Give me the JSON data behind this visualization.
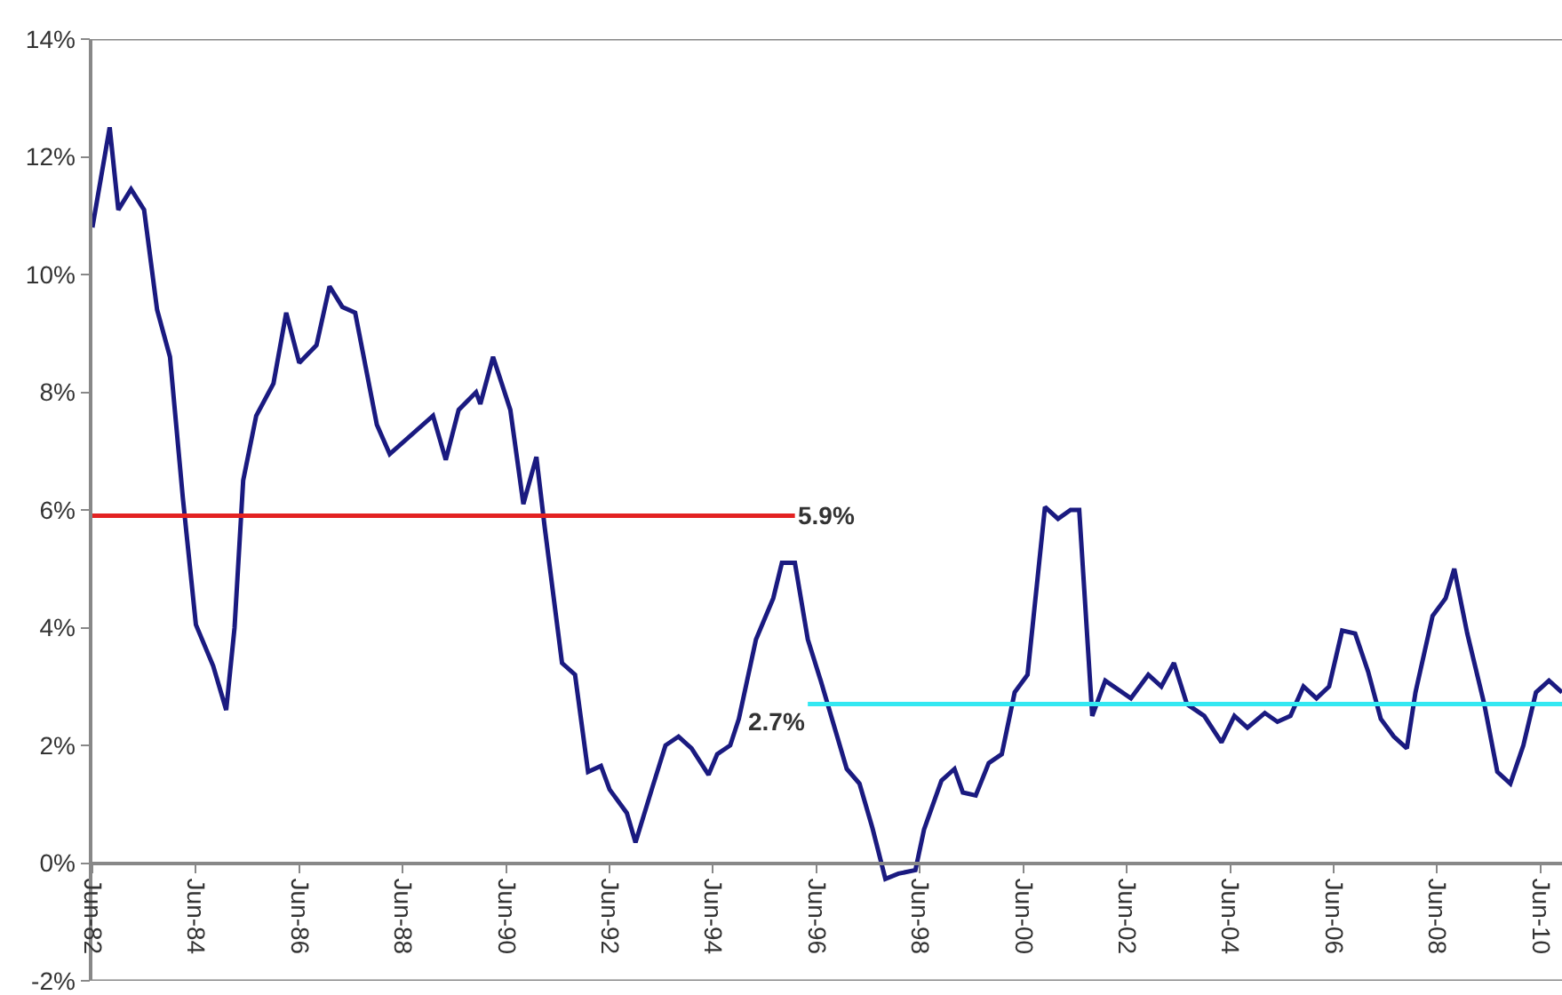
{
  "chart_data": {
    "type": "line",
    "ylim": [
      -2,
      14
    ],
    "yticks": [
      {
        "value": -2,
        "label": "-2%"
      },
      {
        "value": 0,
        "label": "0%"
      },
      {
        "value": 2,
        "label": "2%"
      },
      {
        "value": 4,
        "label": "4%"
      },
      {
        "value": 6,
        "label": "6%"
      },
      {
        "value": 8,
        "label": "8%"
      },
      {
        "value": 10,
        "label": "10%"
      },
      {
        "value": 12,
        "label": "12%"
      },
      {
        "value": 14,
        "label": "14%"
      }
    ],
    "xlim": [
      "1982-06",
      "2010-11"
    ],
    "xticks": [
      {
        "value": "1982-06",
        "label": "Jun-82"
      },
      {
        "value": "1984-06",
        "label": "Jun-84"
      },
      {
        "value": "1986-06",
        "label": "Jun-86"
      },
      {
        "value": "1988-06",
        "label": "Jun-88"
      },
      {
        "value": "1990-06",
        "label": "Jun-90"
      },
      {
        "value": "1992-06",
        "label": "Jun-92"
      },
      {
        "value": "1994-06",
        "label": "Jun-94"
      },
      {
        "value": "1996-06",
        "label": "Jun-96"
      },
      {
        "value": "1998-06",
        "label": "Jun-98"
      },
      {
        "value": "2000-06",
        "label": "Jun-00"
      },
      {
        "value": "2002-06",
        "label": "Jun-02"
      },
      {
        "value": "2004-06",
        "label": "Jun-04"
      },
      {
        "value": "2006-06",
        "label": "Jun-06"
      },
      {
        "value": "2008-06",
        "label": "Jun-08"
      },
      {
        "value": "2010-06",
        "label": "Jun-10"
      }
    ],
    "marker": "none",
    "line_style": "solid",
    "series": [
      {
        "color": "#1a1a80",
        "x": [
          "1982-06",
          "1982-10",
          "1982-12",
          "1983-03",
          "1983-06",
          "1983-09",
          "1983-12",
          "1984-03",
          "1984-06",
          "1984-10",
          "1985-01",
          "1985-03",
          "1985-05",
          "1985-08",
          "1985-12",
          "1986-03",
          "1986-06",
          "1986-10",
          "1987-01",
          "1987-04",
          "1987-07",
          "1987-12",
          "1988-03",
          "1989-01",
          "1989-04",
          "1989-07",
          "1989-11",
          "1989-12",
          "1990-03",
          "1990-07",
          "1990-10",
          "1991-01",
          "1991-03",
          "1991-07",
          "1991-10",
          "1992-01",
          "1992-04",
          "1992-06",
          "1992-10",
          "1992-12",
          "1993-04",
          "1993-07",
          "1993-10",
          "1994-01",
          "1994-05",
          "1994-07",
          "1994-10",
          "1994-12",
          "1995-04",
          "1995-08",
          "1995-10",
          "1996-01",
          "1996-04",
          "1996-07",
          "1997-01",
          "1997-04",
          "1997-07",
          "1997-10",
          "1998-01",
          "1998-05",
          "1998-07",
          "1998-11",
          "1999-02",
          "1999-04",
          "1999-07",
          "1999-10",
          "2000-01",
          "2000-04",
          "2000-07",
          "2000-11",
          "2001-02",
          "2001-05",
          "2001-07",
          "2001-10",
          "2002-01",
          "2002-07",
          "2002-11",
          "2003-02",
          "2003-05",
          "2003-08",
          "2003-12",
          "2004-04",
          "2004-07",
          "2004-10",
          "2005-02",
          "2005-05",
          "2005-08",
          "2005-11",
          "2006-02",
          "2006-05",
          "2006-08",
          "2006-11",
          "2007-02",
          "2007-05",
          "2007-08",
          "2007-11",
          "2008-01",
          "2008-05",
          "2008-08",
          "2008-10",
          "2009-01",
          "2009-05",
          "2009-08",
          "2009-11",
          "2010-02",
          "2010-05",
          "2010-08",
          "2010-11"
        ],
        "values": [
          10.8,
          12.5,
          11.1,
          11.45,
          11.1,
          9.4,
          8.6,
          6.2,
          4.05,
          3.35,
          2.6,
          4.0,
          6.5,
          7.6,
          8.15,
          9.35,
          8.5,
          8.8,
          9.8,
          9.45,
          9.35,
          7.45,
          6.95,
          7.6,
          6.85,
          7.7,
          8.0,
          7.8,
          8.6,
          7.7,
          6.1,
          6.9,
          5.7,
          3.4,
          3.2,
          1.55,
          1.65,
          1.25,
          0.85,
          0.35,
          1.3,
          2.0,
          2.15,
          1.95,
          1.5,
          1.85,
          2.0,
          2.45,
          3.8,
          4.5,
          5.1,
          5.1,
          3.8,
          3.1,
          1.6,
          1.35,
          0.6,
          -0.27,
          -0.18,
          -0.12,
          0.57,
          1.4,
          1.6,
          1.2,
          1.15,
          1.7,
          1.85,
          2.9,
          3.2,
          6.05,
          5.85,
          6.0,
          6.0,
          2.5,
          3.1,
          2.8,
          3.2,
          3.0,
          3.4,
          2.7,
          2.5,
          2.05,
          2.5,
          2.3,
          2.55,
          2.4,
          2.5,
          3.0,
          2.8,
          3.0,
          3.95,
          3.9,
          3.25,
          2.45,
          2.15,
          1.95,
          2.9,
          4.2,
          4.5,
          5.0,
          3.9,
          2.7,
          1.55,
          1.35,
          2.0,
          2.9,
          3.1,
          2.9
        ]
      },
      {
        "color": "#e32222",
        "x": [
          "1982-06",
          "1996-01"
        ],
        "values": [
          5.9,
          5.9
        ]
      },
      {
        "color": "#33e8f2",
        "x": [
          "1996-04",
          "2010-11"
        ],
        "values": [
          2.7,
          2.7
        ]
      }
    ],
    "annotations": [
      {
        "text": "5.9%",
        "x": "1996-01",
        "y": 5.9
      },
      {
        "text": "2.7%",
        "x": "1996-04",
        "y": 2.7
      }
    ]
  }
}
